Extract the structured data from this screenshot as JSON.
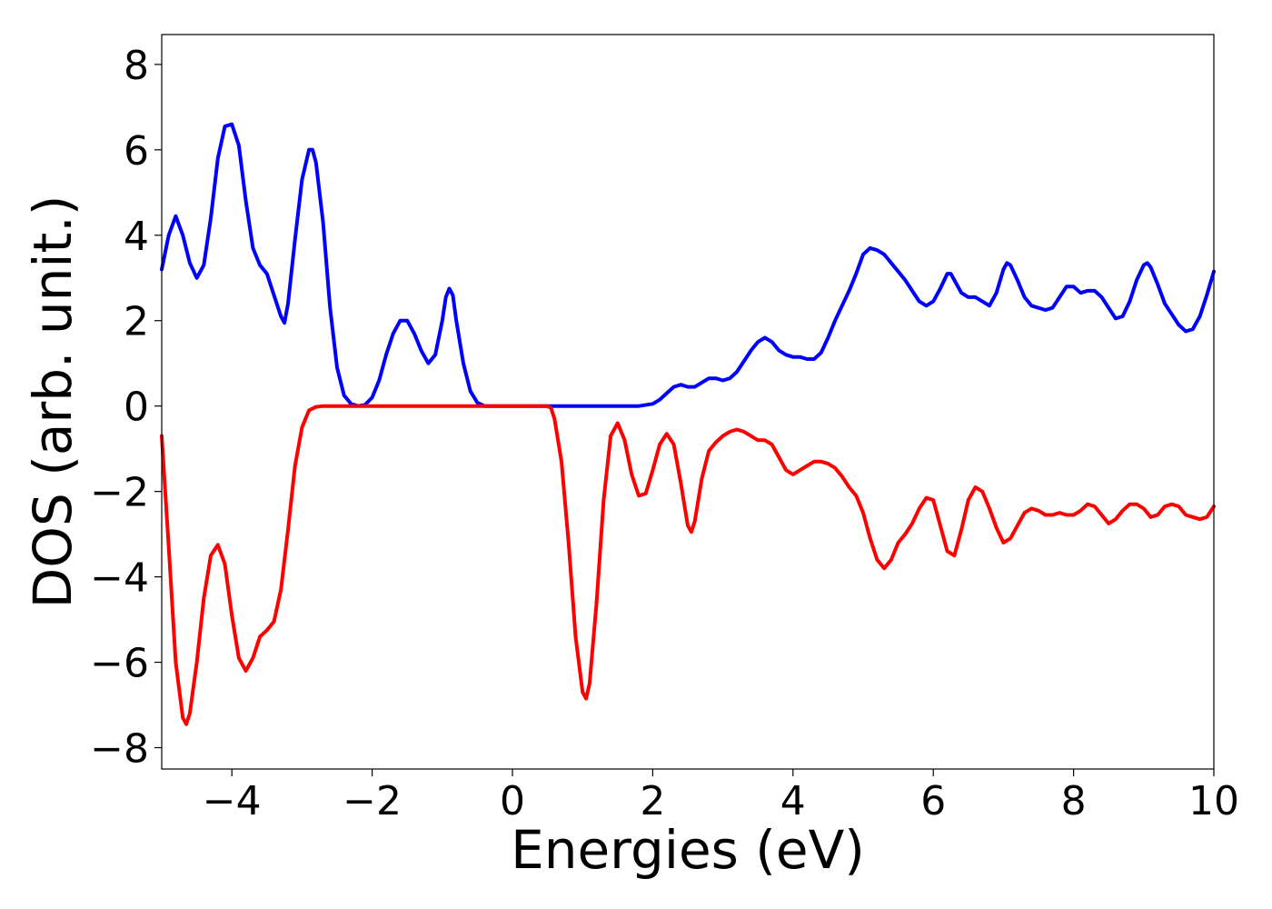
{
  "chart_data": {
    "type": "line",
    "xlabel": "Energies (eV)",
    "ylabel": "DOS (arb. unit.)",
    "xlim": [
      -5,
      10
    ],
    "ylim": [
      -8.5,
      8.7
    ],
    "xticks": [
      -4,
      -2,
      0,
      2,
      4,
      6,
      8,
      10
    ],
    "yticks": [
      -8,
      -6,
      -4,
      -2,
      0,
      2,
      4,
      6,
      8
    ],
    "grid": false,
    "colors": {
      "up": "#0000ff",
      "down": "#ff0000",
      "axes": "#000000"
    },
    "series": [
      {
        "color": "#0000ff",
        "points": [
          [
            -5.0,
            3.2
          ],
          [
            -4.9,
            4.0
          ],
          [
            -4.8,
            4.45
          ],
          [
            -4.7,
            4.0
          ],
          [
            -4.6,
            3.35
          ],
          [
            -4.5,
            3.0
          ],
          [
            -4.4,
            3.3
          ],
          [
            -4.3,
            4.4
          ],
          [
            -4.2,
            5.8
          ],
          [
            -4.1,
            6.55
          ],
          [
            -4.0,
            6.6
          ],
          [
            -3.9,
            6.1
          ],
          [
            -3.8,
            4.8
          ],
          [
            -3.7,
            3.7
          ],
          [
            -3.6,
            3.3
          ],
          [
            -3.5,
            3.1
          ],
          [
            -3.4,
            2.6
          ],
          [
            -3.3,
            2.1
          ],
          [
            -3.25,
            1.95
          ],
          [
            -3.2,
            2.4
          ],
          [
            -3.1,
            3.9
          ],
          [
            -3.0,
            5.3
          ],
          [
            -2.9,
            6.0
          ],
          [
            -2.85,
            6.0
          ],
          [
            -2.8,
            5.7
          ],
          [
            -2.7,
            4.3
          ],
          [
            -2.6,
            2.3
          ],
          [
            -2.5,
            0.9
          ],
          [
            -2.4,
            0.25
          ],
          [
            -2.3,
            0.05
          ],
          [
            -2.2,
            0.0
          ],
          [
            -2.1,
            0.03
          ],
          [
            -2.0,
            0.2
          ],
          [
            -1.9,
            0.6
          ],
          [
            -1.8,
            1.2
          ],
          [
            -1.7,
            1.7
          ],
          [
            -1.6,
            2.0
          ],
          [
            -1.5,
            2.0
          ],
          [
            -1.4,
            1.7
          ],
          [
            -1.3,
            1.3
          ],
          [
            -1.2,
            1.0
          ],
          [
            -1.1,
            1.2
          ],
          [
            -1.0,
            2.0
          ],
          [
            -0.95,
            2.55
          ],
          [
            -0.9,
            2.75
          ],
          [
            -0.85,
            2.6
          ],
          [
            -0.8,
            2.0
          ],
          [
            -0.7,
            1.0
          ],
          [
            -0.6,
            0.35
          ],
          [
            -0.5,
            0.08
          ],
          [
            -0.4,
            0.0
          ],
          [
            0.0,
            0.0
          ],
          [
            1.0,
            0.0
          ],
          [
            1.8,
            0.0
          ],
          [
            2.0,
            0.05
          ],
          [
            2.1,
            0.15
          ],
          [
            2.2,
            0.3
          ],
          [
            2.3,
            0.45
          ],
          [
            2.4,
            0.5
          ],
          [
            2.5,
            0.45
          ],
          [
            2.6,
            0.45
          ],
          [
            2.7,
            0.55
          ],
          [
            2.8,
            0.65
          ],
          [
            2.9,
            0.65
          ],
          [
            3.0,
            0.6
          ],
          [
            3.1,
            0.65
          ],
          [
            3.2,
            0.8
          ],
          [
            3.3,
            1.05
          ],
          [
            3.4,
            1.3
          ],
          [
            3.5,
            1.5
          ],
          [
            3.6,
            1.6
          ],
          [
            3.7,
            1.5
          ],
          [
            3.8,
            1.3
          ],
          [
            3.9,
            1.2
          ],
          [
            4.0,
            1.15
          ],
          [
            4.1,
            1.15
          ],
          [
            4.2,
            1.1
          ],
          [
            4.3,
            1.1
          ],
          [
            4.4,
            1.25
          ],
          [
            4.5,
            1.6
          ],
          [
            4.6,
            2.0
          ],
          [
            4.7,
            2.35
          ],
          [
            4.8,
            2.7
          ],
          [
            4.9,
            3.1
          ],
          [
            5.0,
            3.55
          ],
          [
            5.1,
            3.7
          ],
          [
            5.2,
            3.65
          ],
          [
            5.3,
            3.55
          ],
          [
            5.4,
            3.35
          ],
          [
            5.5,
            3.15
          ],
          [
            5.6,
            2.95
          ],
          [
            5.7,
            2.7
          ],
          [
            5.8,
            2.45
          ],
          [
            5.9,
            2.35
          ],
          [
            6.0,
            2.45
          ],
          [
            6.1,
            2.75
          ],
          [
            6.2,
            3.1
          ],
          [
            6.25,
            3.1
          ],
          [
            6.3,
            2.95
          ],
          [
            6.4,
            2.65
          ],
          [
            6.5,
            2.55
          ],
          [
            6.6,
            2.55
          ],
          [
            6.7,
            2.45
          ],
          [
            6.8,
            2.35
          ],
          [
            6.9,
            2.65
          ],
          [
            7.0,
            3.2
          ],
          [
            7.05,
            3.35
          ],
          [
            7.1,
            3.3
          ],
          [
            7.2,
            2.95
          ],
          [
            7.3,
            2.55
          ],
          [
            7.4,
            2.35
          ],
          [
            7.5,
            2.3
          ],
          [
            7.6,
            2.25
          ],
          [
            7.7,
            2.3
          ],
          [
            7.8,
            2.55
          ],
          [
            7.9,
            2.8
          ],
          [
            8.0,
            2.8
          ],
          [
            8.1,
            2.65
          ],
          [
            8.2,
            2.7
          ],
          [
            8.3,
            2.7
          ],
          [
            8.4,
            2.55
          ],
          [
            8.5,
            2.3
          ],
          [
            8.6,
            2.05
          ],
          [
            8.7,
            2.1
          ],
          [
            8.8,
            2.45
          ],
          [
            8.9,
            2.95
          ],
          [
            9.0,
            3.3
          ],
          [
            9.05,
            3.35
          ],
          [
            9.1,
            3.25
          ],
          [
            9.2,
            2.85
          ],
          [
            9.3,
            2.4
          ],
          [
            9.4,
            2.15
          ],
          [
            9.5,
            1.9
          ],
          [
            9.6,
            1.75
          ],
          [
            9.7,
            1.8
          ],
          [
            9.8,
            2.1
          ],
          [
            9.9,
            2.6
          ],
          [
            10.0,
            3.15
          ]
        ]
      },
      {
        "color": "#ff0000",
        "points": [
          [
            -5.0,
            -0.7
          ],
          [
            -4.9,
            -3.3
          ],
          [
            -4.8,
            -6.0
          ],
          [
            -4.7,
            -7.3
          ],
          [
            -4.65,
            -7.45
          ],
          [
            -4.6,
            -7.2
          ],
          [
            -4.5,
            -6.0
          ],
          [
            -4.4,
            -4.5
          ],
          [
            -4.3,
            -3.5
          ],
          [
            -4.2,
            -3.25
          ],
          [
            -4.1,
            -3.7
          ],
          [
            -4.0,
            -4.9
          ],
          [
            -3.9,
            -5.9
          ],
          [
            -3.8,
            -6.2
          ],
          [
            -3.7,
            -5.9
          ],
          [
            -3.6,
            -5.4
          ],
          [
            -3.5,
            -5.25
          ],
          [
            -3.4,
            -5.05
          ],
          [
            -3.3,
            -4.3
          ],
          [
            -3.2,
            -2.9
          ],
          [
            -3.1,
            -1.4
          ],
          [
            -3.0,
            -0.5
          ],
          [
            -2.9,
            -0.1
          ],
          [
            -2.8,
            -0.02
          ],
          [
            -2.7,
            0.0
          ],
          [
            0.0,
            0.0
          ],
          [
            0.5,
            0.0
          ],
          [
            0.55,
            -0.05
          ],
          [
            0.6,
            -0.3
          ],
          [
            0.7,
            -1.3
          ],
          [
            0.8,
            -3.2
          ],
          [
            0.9,
            -5.4
          ],
          [
            1.0,
            -6.7
          ],
          [
            1.05,
            -6.85
          ],
          [
            1.1,
            -6.5
          ],
          [
            1.2,
            -4.6
          ],
          [
            1.3,
            -2.2
          ],
          [
            1.4,
            -0.7
          ],
          [
            1.5,
            -0.4
          ],
          [
            1.6,
            -0.8
          ],
          [
            1.7,
            -1.6
          ],
          [
            1.8,
            -2.1
          ],
          [
            1.9,
            -2.05
          ],
          [
            2.0,
            -1.5
          ],
          [
            2.1,
            -0.9
          ],
          [
            2.2,
            -0.65
          ],
          [
            2.3,
            -0.9
          ],
          [
            2.4,
            -1.8
          ],
          [
            2.5,
            -2.8
          ],
          [
            2.55,
            -2.95
          ],
          [
            2.6,
            -2.7
          ],
          [
            2.7,
            -1.7
          ],
          [
            2.8,
            -1.05
          ],
          [
            2.9,
            -0.85
          ],
          [
            3.0,
            -0.7
          ],
          [
            3.1,
            -0.6
          ],
          [
            3.2,
            -0.55
          ],
          [
            3.3,
            -0.6
          ],
          [
            3.4,
            -0.7
          ],
          [
            3.5,
            -0.8
          ],
          [
            3.6,
            -0.8
          ],
          [
            3.7,
            -0.9
          ],
          [
            3.8,
            -1.2
          ],
          [
            3.9,
            -1.5
          ],
          [
            4.0,
            -1.6
          ],
          [
            4.1,
            -1.5
          ],
          [
            4.2,
            -1.4
          ],
          [
            4.3,
            -1.3
          ],
          [
            4.4,
            -1.3
          ],
          [
            4.5,
            -1.35
          ],
          [
            4.6,
            -1.45
          ],
          [
            4.7,
            -1.65
          ],
          [
            4.8,
            -1.9
          ],
          [
            4.9,
            -2.1
          ],
          [
            5.0,
            -2.5
          ],
          [
            5.1,
            -3.1
          ],
          [
            5.2,
            -3.6
          ],
          [
            5.3,
            -3.8
          ],
          [
            5.4,
            -3.6
          ],
          [
            5.5,
            -3.2
          ],
          [
            5.6,
            -3.0
          ],
          [
            5.7,
            -2.75
          ],
          [
            5.8,
            -2.4
          ],
          [
            5.9,
            -2.15
          ],
          [
            6.0,
            -2.2
          ],
          [
            6.1,
            -2.8
          ],
          [
            6.2,
            -3.4
          ],
          [
            6.3,
            -3.5
          ],
          [
            6.4,
            -2.9
          ],
          [
            6.5,
            -2.2
          ],
          [
            6.6,
            -1.9
          ],
          [
            6.7,
            -2.0
          ],
          [
            6.8,
            -2.4
          ],
          [
            6.9,
            -2.85
          ],
          [
            7.0,
            -3.2
          ],
          [
            7.1,
            -3.1
          ],
          [
            7.2,
            -2.8
          ],
          [
            7.3,
            -2.5
          ],
          [
            7.4,
            -2.4
          ],
          [
            7.5,
            -2.45
          ],
          [
            7.6,
            -2.55
          ],
          [
            7.7,
            -2.55
          ],
          [
            7.8,
            -2.5
          ],
          [
            7.9,
            -2.55
          ],
          [
            8.0,
            -2.55
          ],
          [
            8.1,
            -2.45
          ],
          [
            8.2,
            -2.3
          ],
          [
            8.3,
            -2.35
          ],
          [
            8.4,
            -2.55
          ],
          [
            8.5,
            -2.75
          ],
          [
            8.6,
            -2.65
          ],
          [
            8.7,
            -2.45
          ],
          [
            8.8,
            -2.3
          ],
          [
            8.9,
            -2.3
          ],
          [
            9.0,
            -2.4
          ],
          [
            9.1,
            -2.6
          ],
          [
            9.2,
            -2.55
          ],
          [
            9.3,
            -2.35
          ],
          [
            9.4,
            -2.3
          ],
          [
            9.5,
            -2.35
          ],
          [
            9.6,
            -2.55
          ],
          [
            9.7,
            -2.6
          ],
          [
            9.8,
            -2.65
          ],
          [
            9.9,
            -2.6
          ],
          [
            10.0,
            -2.35
          ]
        ]
      }
    ]
  }
}
